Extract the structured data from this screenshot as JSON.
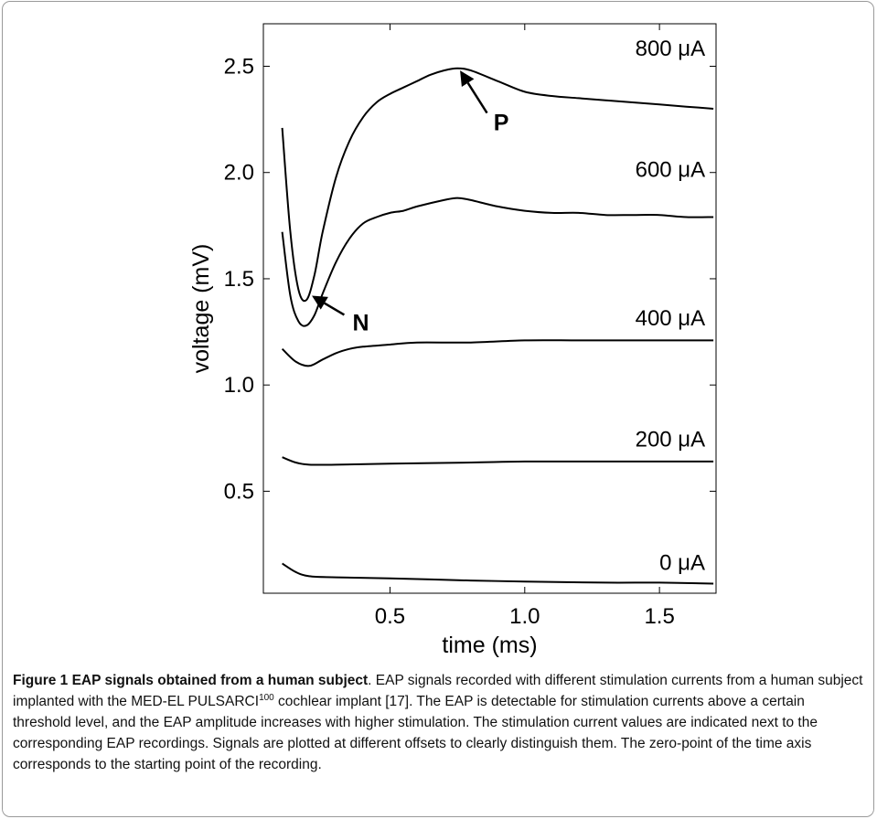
{
  "chart_data": {
    "type": "line",
    "xlabel": "time (ms)",
    "ylabel": "voltage (mV)",
    "xlim": [
      0.03,
      1.71
    ],
    "ylim": [
      0.02,
      2.7
    ],
    "xticks": [
      0.5,
      1.0,
      1.5
    ],
    "xtick_labels": [
      "0.5",
      "1.0",
      "1.5"
    ],
    "yticks": [
      0.5,
      1.0,
      1.5,
      2.0,
      2.5
    ],
    "ytick_labels": [
      "0.5",
      "1.0",
      "1.5",
      "2.0",
      "2.5"
    ],
    "grid": false,
    "series": [
      {
        "name": "800 μA",
        "x": [
          0.1,
          0.13,
          0.16,
          0.19,
          0.22,
          0.25,
          0.3,
          0.35,
          0.4,
          0.45,
          0.5,
          0.55,
          0.6,
          0.65,
          0.7,
          0.75,
          0.8,
          0.9,
          1.0,
          1.1,
          1.2,
          1.3,
          1.4,
          1.5,
          1.6,
          1.7
        ],
        "values": [
          2.21,
          1.72,
          1.45,
          1.4,
          1.52,
          1.72,
          1.98,
          2.15,
          2.26,
          2.33,
          2.37,
          2.4,
          2.43,
          2.46,
          2.48,
          2.49,
          2.48,
          2.43,
          2.38,
          2.36,
          2.35,
          2.34,
          2.33,
          2.32,
          2.31,
          2.3
        ]
      },
      {
        "name": "600 μA",
        "x": [
          0.1,
          0.13,
          0.16,
          0.19,
          0.22,
          0.25,
          0.3,
          0.35,
          0.4,
          0.45,
          0.5,
          0.55,
          0.6,
          0.7,
          0.75,
          0.8,
          0.9,
          1.0,
          1.1,
          1.2,
          1.3,
          1.4,
          1.5,
          1.6,
          1.7
        ],
        "values": [
          1.72,
          1.42,
          1.3,
          1.28,
          1.33,
          1.43,
          1.58,
          1.69,
          1.76,
          1.79,
          1.81,
          1.82,
          1.84,
          1.87,
          1.88,
          1.87,
          1.84,
          1.82,
          1.81,
          1.81,
          1.8,
          1.8,
          1.8,
          1.79,
          1.79
        ]
      },
      {
        "name": "400 μA",
        "x": [
          0.1,
          0.15,
          0.2,
          0.25,
          0.3,
          0.35,
          0.4,
          0.5,
          0.6,
          0.8,
          1.0,
          1.2,
          1.4,
          1.6,
          1.7
        ],
        "values": [
          1.17,
          1.11,
          1.09,
          1.12,
          1.15,
          1.17,
          1.18,
          1.19,
          1.2,
          1.2,
          1.21,
          1.21,
          1.21,
          1.21,
          1.21
        ]
      },
      {
        "name": "200 μA",
        "x": [
          0.1,
          0.15,
          0.2,
          0.3,
          0.5,
          0.8,
          1.0,
          1.3,
          1.5,
          1.7
        ],
        "values": [
          0.66,
          0.635,
          0.625,
          0.625,
          0.63,
          0.635,
          0.64,
          0.64,
          0.64,
          0.64
        ]
      },
      {
        "name": "0 μA",
        "x": [
          0.1,
          0.15,
          0.2,
          0.3,
          0.5,
          0.8,
          1.0,
          1.3,
          1.5,
          1.7
        ],
        "values": [
          0.16,
          0.12,
          0.1,
          0.095,
          0.09,
          0.08,
          0.075,
          0.07,
          0.07,
          0.065
        ]
      }
    ],
    "series_labels": [
      {
        "text": "800 μA",
        "x": 1.41,
        "y": 2.55
      },
      {
        "text": "600 μA",
        "x": 1.41,
        "y": 1.98
      },
      {
        "text": "400 μA",
        "x": 1.41,
        "y": 1.28
      },
      {
        "text": "200 μA",
        "x": 1.41,
        "y": 0.71
      },
      {
        "text": "0 μA",
        "x": 1.5,
        "y": 0.13
      }
    ],
    "annotations": [
      {
        "text": "P",
        "arrow_from": [
          0.86,
          2.28
        ],
        "arrow_to": [
          0.76,
          2.48
        ]
      },
      {
        "text": "N",
        "arrow_from": [
          0.33,
          1.33
        ],
        "arrow_to": [
          0.21,
          1.42
        ]
      }
    ]
  },
  "caption": {
    "title": "Figure 1 EAP signals obtained from a human subject",
    "pre": ". EAP signals recorded with different stimulation currents from a human subject implanted with the MED-EL PULSARCI",
    "sup": "100",
    "post": " cochlear implant [17]. The EAP is detectable for stimulation currents above a certain threshold level, and the EAP amplitude increases with higher stimulation. The stimulation current values are indicated next to the corresponding EAP recordings. Signals are plotted at different offsets to clearly distinguish them. The zero-point of the time axis corresponds to the starting point of the recording."
  },
  "colors": {
    "line": "#000000",
    "frame": "#9a9a9a"
  }
}
